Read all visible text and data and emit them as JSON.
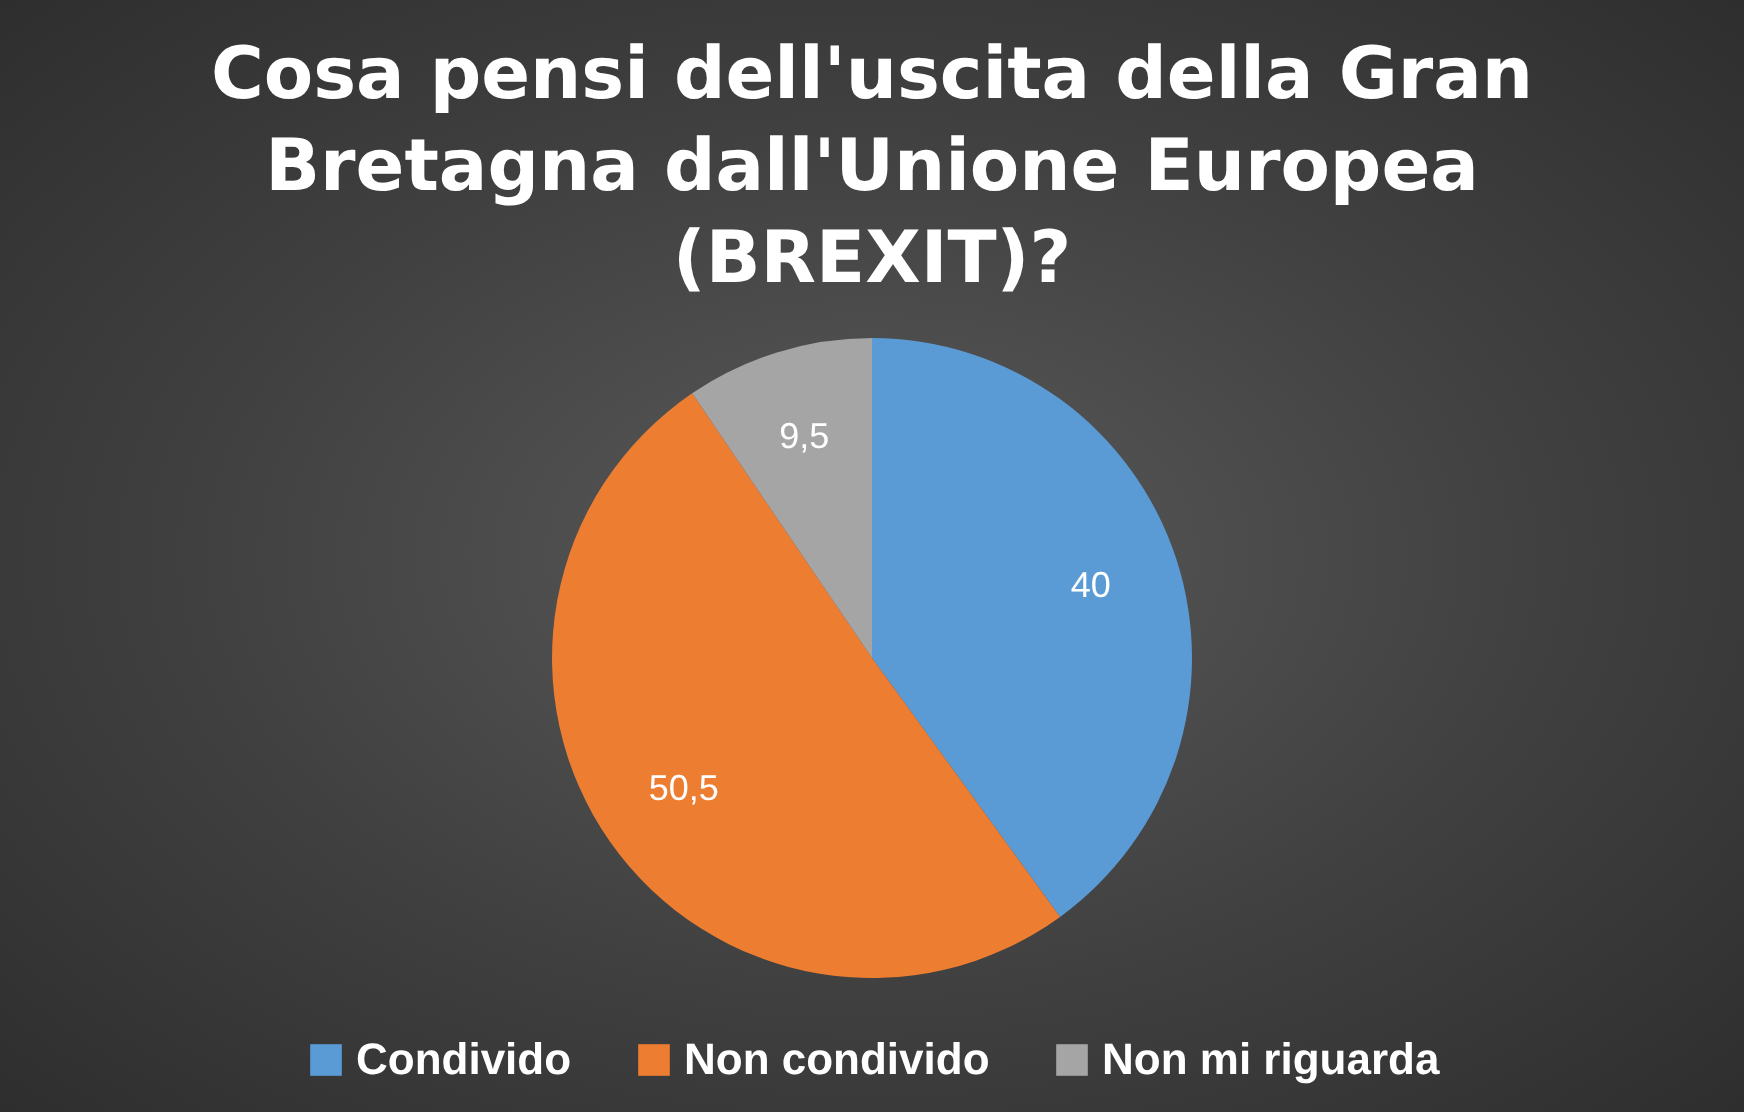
{
  "chart_data": {
    "type": "pie",
    "title": "Cosa pensi dell'uscita della Gran Bretagna dall'Unione Europea (BREXIT)?",
    "categories": [
      "Condivido",
      "Non condivido",
      "Non mi riguarda"
    ],
    "values": [
      40,
      50.5,
      9.5
    ],
    "colors": [
      "#5b9bd5",
      "#ed7d31",
      "#a5a5a5"
    ],
    "value_labels": [
      "40",
      "50,5",
      "9,5"
    ],
    "legend": "bottom"
  }
}
